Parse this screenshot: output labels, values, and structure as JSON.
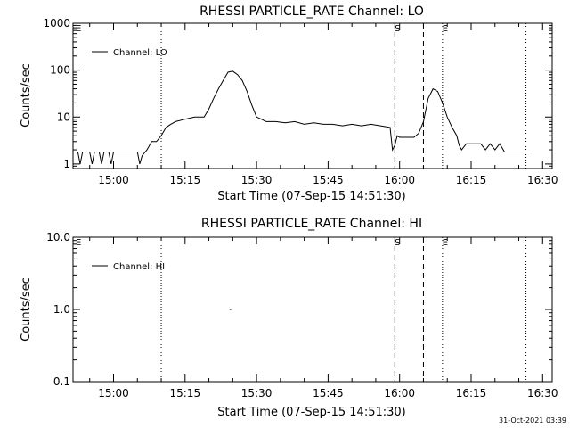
{
  "chart_data": [
    {
      "type": "line",
      "title": "RHESSI PARTICLE_RATE Channel: LO",
      "xlabel": "Start Time (07-Sep-15 14:51:30)",
      "ylabel": "Counts/sec",
      "y_scale": "log",
      "ylim": [
        0.8,
        1000
      ],
      "xlim": [
        "14:51:30",
        "16:32:00"
      ],
      "xticks": [
        "15:00",
        "15:15",
        "15:30",
        "15:45",
        "16:00",
        "16:15",
        "16:30"
      ],
      "yticks": [
        "1",
        "10",
        "100",
        "1000"
      ],
      "legend": "top-left",
      "series": [
        {
          "name": "Channel: LO",
          "points": [
            [
              "14:51:30",
              1.8
            ],
            [
              "14:52:30",
              1.8
            ],
            [
              "14:53:00",
              1
            ],
            [
              "14:53:30",
              1.8
            ],
            [
              "14:55:00",
              1.8
            ],
            [
              "14:55:30",
              1
            ],
            [
              "14:56:00",
              1.8
            ],
            [
              "14:57:00",
              1.8
            ],
            [
              "14:57:30",
              1
            ],
            [
              "14:58:00",
              1.8
            ],
            [
              "14:59:00",
              1.8
            ],
            [
              "14:59:30",
              1
            ],
            [
              "15:00:00",
              1.8
            ],
            [
              "15:05:00",
              1.8
            ],
            [
              "15:05:30",
              1
            ],
            [
              "15:06:00",
              1.5
            ],
            [
              "15:07:00",
              2
            ],
            [
              "15:08:00",
              3
            ],
            [
              "15:09:00",
              3
            ],
            [
              "15:10:00",
              4
            ],
            [
              "15:11:00",
              6
            ],
            [
              "15:12:00",
              7
            ],
            [
              "15:13:00",
              8
            ],
            [
              "15:15:00",
              9
            ],
            [
              "15:17:00",
              10
            ],
            [
              "15:19:00",
              10
            ],
            [
              "15:20:00",
              15
            ],
            [
              "15:21:00",
              25
            ],
            [
              "15:22:00",
              40
            ],
            [
              "15:23:00",
              60
            ],
            [
              "15:24:00",
              90
            ],
            [
              "15:25:00",
              95
            ],
            [
              "15:26:00",
              80
            ],
            [
              "15:27:00",
              60
            ],
            [
              "15:28:00",
              35
            ],
            [
              "15:29:00",
              18
            ],
            [
              "15:30:00",
              10
            ],
            [
              "15:31:00",
              9
            ],
            [
              "15:32:00",
              8
            ],
            [
              "15:34:00",
              8
            ],
            [
              "15:36:00",
              7.5
            ],
            [
              "15:38:00",
              8
            ],
            [
              "15:40:00",
              7
            ],
            [
              "15:42:00",
              7.5
            ],
            [
              "15:44:00",
              7
            ],
            [
              "15:46:00",
              7
            ],
            [
              "15:48:00",
              6.5
            ],
            [
              "15:50:00",
              7
            ],
            [
              "15:52:00",
              6.5
            ],
            [
              "15:54:00",
              7
            ],
            [
              "15:56:00",
              6.5
            ],
            [
              "15:58:00",
              6
            ],
            [
              "15:58:30",
              2
            ],
            [
              "15:59:00",
              2.5
            ],
            [
              "15:59:30",
              4
            ],
            [
              "16:00:00",
              3.7
            ],
            [
              "16:03:00",
              3.7
            ],
            [
              "16:04:00",
              4.5
            ],
            [
              "16:05:00",
              8
            ],
            [
              "16:06:00",
              25
            ],
            [
              "16:07:00",
              40
            ],
            [
              "16:08:00",
              35
            ],
            [
              "16:09:00",
              20
            ],
            [
              "16:10:00",
              10
            ],
            [
              "16:11:00",
              6
            ],
            [
              "16:12:00",
              4
            ],
            [
              "16:12:30",
              2.5
            ],
            [
              "16:13:00",
              2
            ],
            [
              "16:14:00",
              2.7
            ],
            [
              "16:17:00",
              2.7
            ],
            [
              "16:18:00",
              2
            ],
            [
              "16:19:00",
              2.7
            ],
            [
              "16:20:00",
              2
            ],
            [
              "16:21:00",
              2.7
            ],
            [
              "16:22:00",
              1.8
            ],
            [
              "16:27:00",
              1.8
            ]
          ]
        }
      ],
      "vlines_dotted": [
        "15:10:00",
        "16:09:00",
        "16:26:30"
      ],
      "vlines_dashed": [
        "15:59:00",
        "16:05:00"
      ],
      "markers": [
        {
          "label": "S",
          "x": "15:59:00"
        },
        {
          "label": "E",
          "x": "16:09:00"
        },
        {
          "label": "E",
          "x": "14:51:30"
        }
      ]
    },
    {
      "type": "line",
      "title": "RHESSI PARTICLE_RATE Channel: HI",
      "xlabel": "Start Time (07-Sep-15 14:51:30)",
      "ylabel": "Counts/sec",
      "y_scale": "log",
      "ylim": [
        0.1,
        10.0
      ],
      "xlim": [
        "14:51:30",
        "16:32:00"
      ],
      "xticks": [
        "15:00",
        "15:15",
        "15:30",
        "15:45",
        "16:00",
        "16:15",
        "16:30"
      ],
      "yticks": [
        "0.1",
        "1.0",
        "10.0"
      ],
      "legend": "top-left",
      "series": [
        {
          "name": "Channel: HI",
          "points": [
            [
              "15:24:30",
              1.0
            ]
          ]
        }
      ],
      "vlines_dotted": [
        "15:10:00",
        "16:09:00",
        "16:26:30"
      ],
      "vlines_dashed": [
        "15:59:00",
        "16:05:00"
      ],
      "markers": [
        {
          "label": "S",
          "x": "15:59:00"
        },
        {
          "label": "E",
          "x": "16:09:00"
        },
        {
          "label": "E",
          "x": "14:51:30"
        }
      ]
    }
  ],
  "footer_timestamp": "31-Oct-2021 03:39"
}
